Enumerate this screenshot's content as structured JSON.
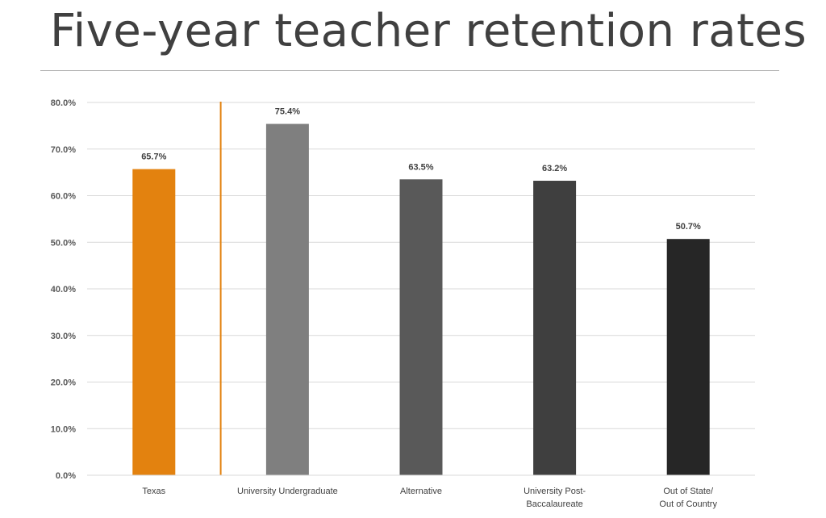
{
  "slide": {
    "title": "Five-year teacher retention rates"
  },
  "chart_data": {
    "type": "bar",
    "title": "",
    "xlabel": "",
    "ylabel": "",
    "ylim": [
      0,
      80
    ],
    "y_ticks": [
      "0.0%",
      "10.0%",
      "20.0%",
      "30.0%",
      "40.0%",
      "50.0%",
      "60.0%",
      "70.0%",
      "80.0%"
    ],
    "y_tick_values": [
      0,
      10,
      20,
      30,
      40,
      50,
      60,
      70,
      80
    ],
    "categories": [
      [
        "Texas"
      ],
      [
        "University Undergraduate"
      ],
      [
        "Alternative"
      ],
      [
        "University Post-",
        "Baccalaureate"
      ],
      [
        "Out of State/",
        "Out of Country"
      ]
    ],
    "values": [
      65.7,
      75.4,
      63.5,
      63.2,
      50.7
    ],
    "value_labels": [
      "65.7%",
      "75.4%",
      "63.5%",
      "63.2%",
      "50.7%"
    ],
    "bar_colors": [
      "#E3820F",
      "#7F7F7F",
      "#595959",
      "#3F3F3F",
      "#262626"
    ],
    "separator_color": "#E3820F",
    "grid": true,
    "legend": "none"
  }
}
